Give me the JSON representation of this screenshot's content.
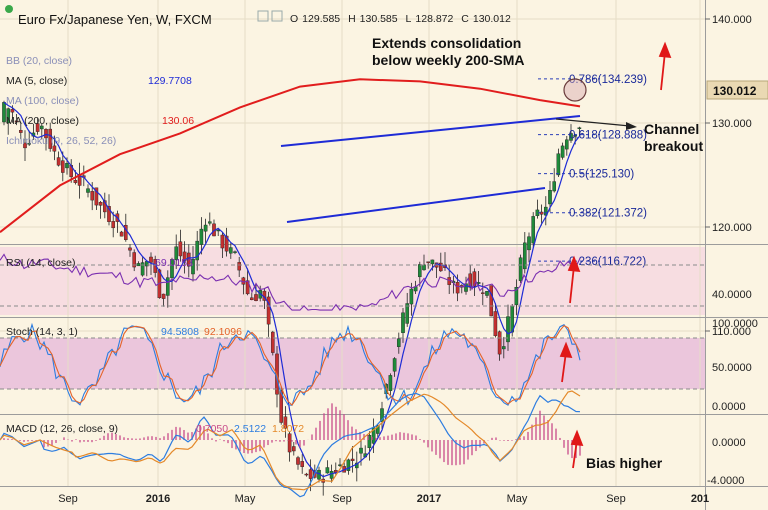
{
  "chart_data": {
    "type": "candlestick",
    "instrument": "Euro Fx/Japanese Yen, W, FXCM",
    "ohlc": {
      "o_label": "O",
      "o": "129.585",
      "h_label": "H",
      "h": "130.585",
      "l_label": "L",
      "l": "128.872",
      "c_label": "C",
      "c": "130.012"
    },
    "price_axis": {
      "ticks": [
        "140.000",
        "130.000",
        "120.000",
        "110.000"
      ],
      "tick_values": [
        140,
        130,
        120,
        110
      ],
      "range": [
        107,
        143
      ],
      "last_price": "130.012"
    },
    "time_axis": {
      "labels": [
        "Sep",
        "2016",
        "May",
        "Sep",
        "2017",
        "May",
        "Sep",
        "201"
      ]
    },
    "indicators_main": [
      {
        "label": "MA (5, close)",
        "value": "129.7708",
        "color": "#1e2bd6"
      },
      {
        "label": "MA (100, close)",
        "value": "",
        "color": "#9aa0c8"
      },
      {
        "label": "MA (200, close)",
        "value": "130.06",
        "color": "#e11d1d"
      },
      {
        "label": "Ichimoku (9, 26, 52, 26)",
        "value": "",
        "color": "#9aa0c8"
      },
      {
        "label": "BB (20, close)",
        "value": "",
        "color": "#9aa0c8"
      }
    ],
    "fibonacci": [
      {
        "level": "0.786",
        "price": 134.239,
        "label": "0.786(134.239)"
      },
      {
        "level": "0.618",
        "price": 128.888,
        "label": "0.618(128.888)"
      },
      {
        "level": "0.5",
        "price": 125.13,
        "label": "0.5(125.130)"
      },
      {
        "level": "0.382",
        "price": 121.372,
        "label": "0.382(121.372)"
      },
      {
        "level": "0.236",
        "price": 116.722,
        "label": "0.236(116.722)"
      }
    ],
    "annotations": {
      "consolidation": "Extends consolidation\nbelow weekly 200-SMA",
      "breakout": "Channel\nbreakout",
      "bias": "Bias higher"
    },
    "rsi": {
      "label": "RSI (14, close)",
      "value": "69.0153",
      "axis_tick": "40.0000",
      "range": [
        15,
        85
      ],
      "levels": [
        70,
        30
      ]
    },
    "stoch": {
      "label": "Stoch (14, 3, 1)",
      "k": "94.5808",
      "d": "92.1096",
      "axis_ticks": [
        "100.0000",
        "50.0000",
        "0.0000"
      ],
      "range": [
        -10,
        105
      ],
      "levels": [
        80,
        20
      ]
    },
    "macd": {
      "label": "MACD (12, 26, close, 9)",
      "hist": "0.7050",
      "macd": "2.5122",
      "signal": "1.8072",
      "axis_ticks": [
        "0.0000",
        "-4.0000"
      ],
      "range": [
        -4.6,
        2.8
      ]
    }
  }
}
